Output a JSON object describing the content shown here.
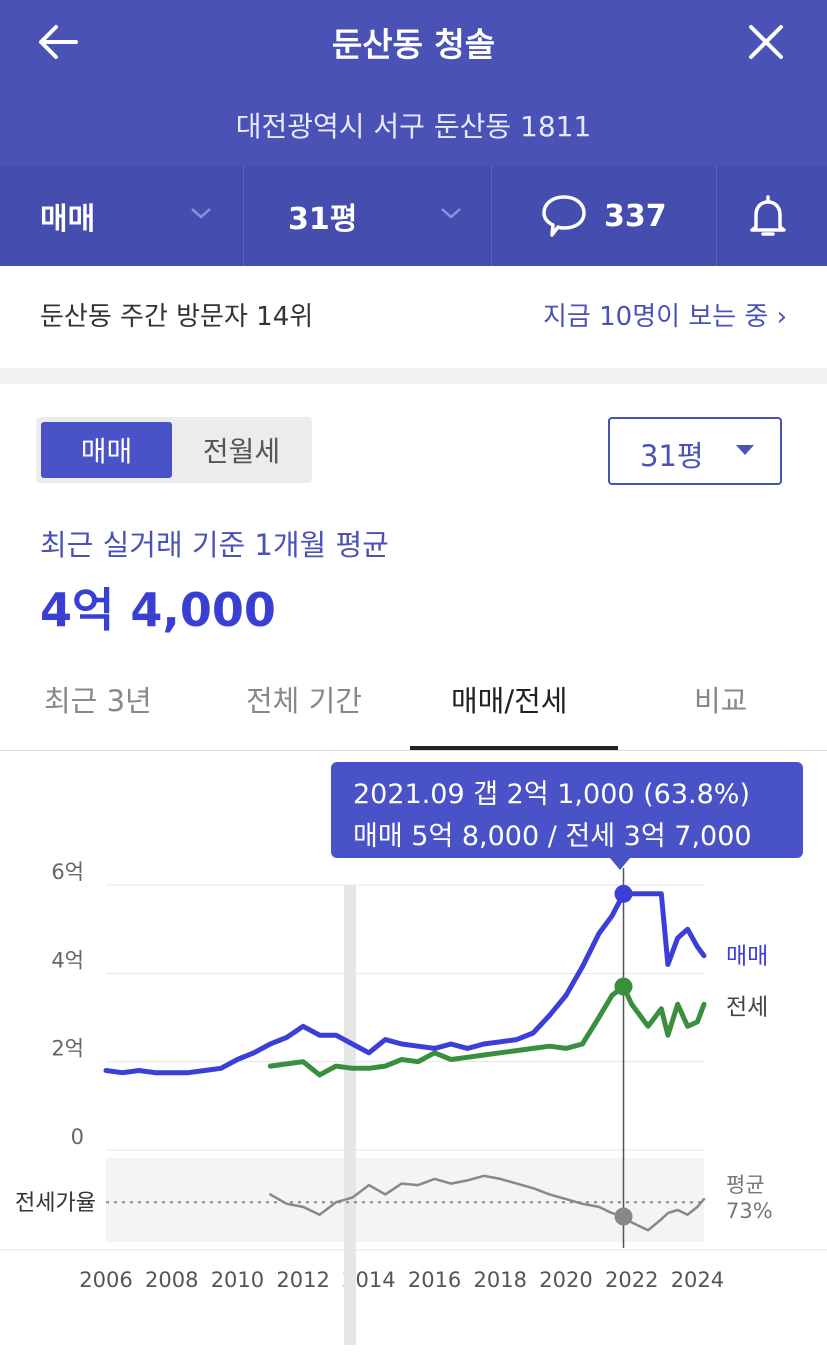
{
  "header": {
    "title": "둔산동 청솔",
    "address": "대전광역시 서구 둔산동 1811"
  },
  "navbar": {
    "trade_type": "매매",
    "size": "31평",
    "comment_count": "337"
  },
  "visitors": {
    "rank_text": "둔산동 주간 방문자 14위",
    "live_text": "지금 10명이 보는 중 ›"
  },
  "segment": {
    "active": "매매",
    "inactive": "전월세"
  },
  "size_select": {
    "value": "31평"
  },
  "average": {
    "label": "최근 실거래 기준 1개월 평균",
    "value": "4억 4,000"
  },
  "tabs": [
    "최근 3년",
    "전체 기간",
    "매매/전세",
    "비교"
  ],
  "active_tab_index": 2,
  "tooltip": {
    "line1": "2021.09  갭 2억 1,000 (63.8%)",
    "line2": "매매 5억 8,000 / 전세 3억 7,000"
  },
  "colors": {
    "header_bg": "#4A52B5",
    "sale": "#3B3FD8",
    "jeonse": "#3A8F3F",
    "ratio": "#888888"
  },
  "chart_data": {
    "type": "line",
    "y_axis": {
      "ticks": [
        "6억",
        "4억",
        "2억",
        "0"
      ],
      "range": [
        0,
        6
      ],
      "unit": "억"
    },
    "x_axis": {
      "ticks": [
        "2006",
        "2008",
        "2010",
        "2012",
        "2014",
        "2016",
        "2018",
        "2020",
        "2022",
        "2024"
      ],
      "range": [
        2006,
        2024.2
      ]
    },
    "ratio_label": "전세가율",
    "ratio_avg_label": "평균\n73%",
    "series": [
      {
        "name": "매매",
        "x": [
          2006,
          2006.5,
          2007,
          2007.5,
          2008,
          2008.5,
          2009,
          2009.5,
          2010,
          2010.5,
          2011,
          2011.5,
          2012,
          2012.5,
          2013,
          2013.5,
          2014,
          2014.5,
          2015,
          2015.5,
          2016,
          2016.5,
          2017,
          2017.5,
          2018,
          2018.5,
          2019,
          2019.5,
          2020,
          2020.5,
          2021,
          2021.4,
          2021.75,
          2022,
          2022.5,
          2022.9,
          2023.1,
          2023.4,
          2023.7,
          2024,
          2024.2
        ],
        "values": [
          1.8,
          1.75,
          1.8,
          1.75,
          1.75,
          1.75,
          1.8,
          1.85,
          2.05,
          2.2,
          2.4,
          2.55,
          2.8,
          2.6,
          2.6,
          2.4,
          2.2,
          2.5,
          2.4,
          2.35,
          2.3,
          2.4,
          2.3,
          2.4,
          2.45,
          2.5,
          2.65,
          3.05,
          3.5,
          4.15,
          4.9,
          5.3,
          5.8,
          5.8,
          5.8,
          5.8,
          4.2,
          4.8,
          5.0,
          4.6,
          4.4
        ]
      },
      {
        "name": "전세",
        "x": [
          2011,
          2011.5,
          2012,
          2012.5,
          2013,
          2013.5,
          2014,
          2014.5,
          2015,
          2015.5,
          2016,
          2016.5,
          2017,
          2017.5,
          2018,
          2018.5,
          2019,
          2019.5,
          2020,
          2020.5,
          2021,
          2021.4,
          2021.75,
          2022,
          2022.5,
          2022.9,
          2023.1,
          2023.4,
          2023.7,
          2024,
          2024.2
        ],
        "values": [
          1.9,
          1.95,
          2.0,
          1.7,
          1.9,
          1.85,
          1.85,
          1.9,
          2.05,
          2.0,
          2.2,
          2.05,
          2.1,
          2.15,
          2.2,
          2.25,
          2.3,
          2.35,
          2.3,
          2.4,
          3.0,
          3.5,
          3.7,
          3.3,
          2.8,
          3.2,
          2.6,
          3.3,
          2.8,
          2.9,
          3.3
        ]
      },
      {
        "name": "전세가율",
        "x": [
          2011,
          2011.5,
          2012,
          2012.5,
          2013,
          2013.5,
          2014,
          2014.5,
          2015,
          2015.5,
          2016,
          2016.5,
          2017,
          2017.5,
          2018,
          2018.5,
          2019,
          2019.5,
          2020,
          2020.5,
          2021,
          2021.4,
          2021.75,
          2022,
          2022.5,
          2022.9,
          2023.1,
          2023.4,
          2023.7,
          2024,
          2024.2
        ],
        "values": [
          78,
          72,
          70,
          65,
          73,
          76,
          84,
          78,
          85,
          84,
          88,
          85,
          87,
          90,
          88,
          85,
          82,
          78,
          75,
          72,
          70,
          66,
          64,
          60,
          55,
          62,
          66,
          68,
          65,
          70,
          75
        ]
      }
    ],
    "highlight": {
      "x": 2021.75,
      "sale": 5.8,
      "jeonse": 3.7,
      "ratio": 63.8
    }
  }
}
